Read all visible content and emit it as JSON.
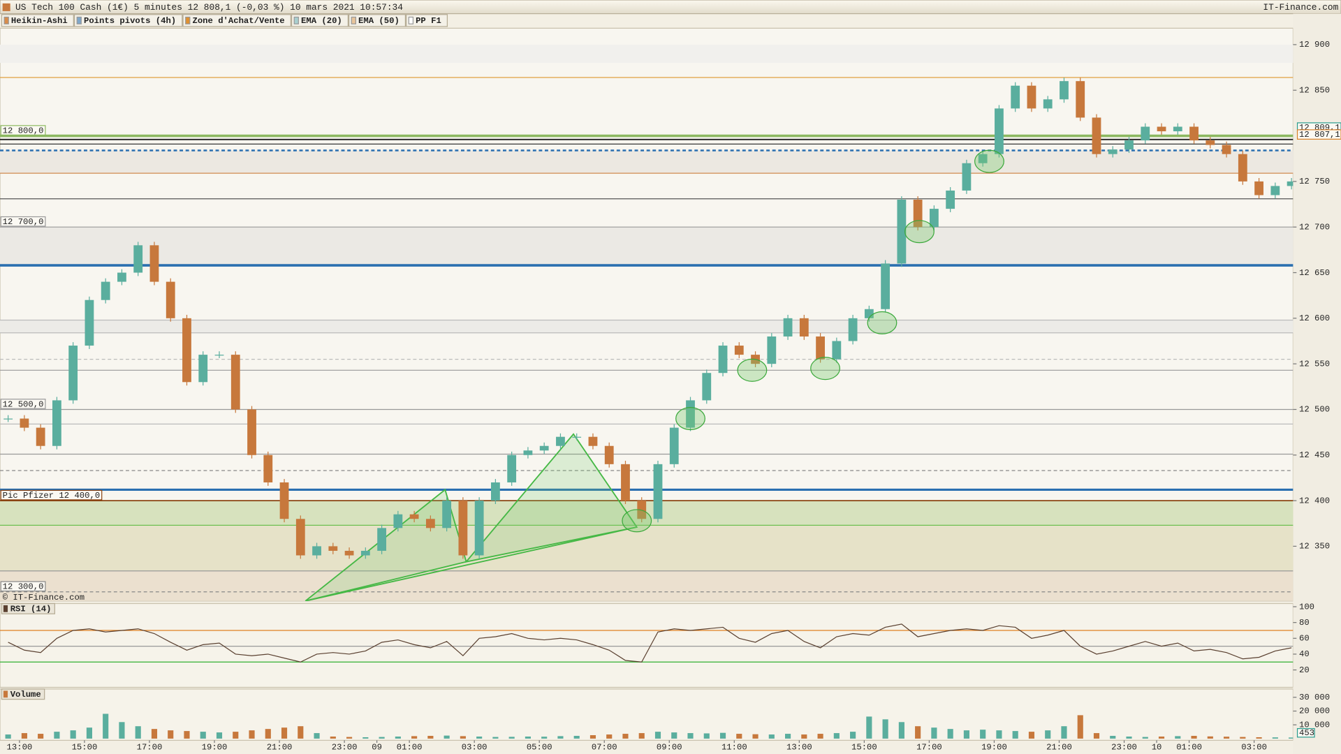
{
  "header": {
    "instrument": "US Tech 100 Cash (1€) 5 minutes 12 808,1 (-0,03 %) 10 mars 2021 10:57:34",
    "site": "IT-Finance.com",
    "copyright": "© IT-Finance.com",
    "indicators": [
      {
        "name": "Heikin-Ashi",
        "color": "#d98c4a"
      },
      {
        "name": "Points pivots (4h)",
        "color": "#7fa7c9"
      },
      {
        "name": "Zone d'Achat/Vente",
        "color": "#e09030"
      },
      {
        "name": "EMA (20)",
        "color": "#a9cfcf"
      },
      {
        "name": "EMA (50)",
        "color": "#e8c49a"
      },
      {
        "name": "PP F1",
        "color": "#ffffff"
      }
    ]
  },
  "chart_data": [
    {
      "type": "candlestick",
      "up_color": "#5aae9e",
      "down_color": "#c7783c",
      "closes": [
        12490,
        12480,
        12460,
        12510,
        12570,
        12620,
        12640,
        12650,
        12680,
        12640,
        12600,
        12530,
        12560,
        12560,
        12500,
        12450,
        12420,
        12380,
        12340,
        12350,
        12345,
        12340,
        12345,
        12370,
        12385,
        12380,
        12370,
        12400,
        12340,
        12400,
        12420,
        12450,
        12455,
        12460,
        12470,
        12470,
        12460,
        12440,
        12400,
        12380,
        12440,
        12480,
        12510,
        12540,
        12570,
        12560,
        12550,
        12580,
        12600,
        12580,
        12555,
        12575,
        12600,
        12610,
        12660,
        12730,
        12700,
        12720,
        12740,
        12770,
        12780,
        12830,
        12855,
        12830,
        12840,
        12860,
        12820,
        12780,
        12785,
        12795,
        12810,
        12805,
        12810,
        12795,
        12790,
        12780,
        12750,
        12735,
        12745,
        12750
      ],
      "xlim": [
        0,
        79.6
      ],
      "xticks": [
        {
          "value": 1.2,
          "label": "13:00"
        },
        {
          "value": 5.2,
          "label": "15:00"
        },
        {
          "value": 9.2,
          "label": "17:00"
        },
        {
          "value": 13.2,
          "label": "19:00"
        },
        {
          "value": 17.2,
          "label": "21:00"
        },
        {
          "value": 21.2,
          "label": "23:00"
        },
        {
          "value": 23.2,
          "label": "09"
        },
        {
          "value": 25.2,
          "label": "01:00"
        },
        {
          "value": 29.2,
          "label": "03:00"
        },
        {
          "value": 33.2,
          "label": "05:00"
        },
        {
          "value": 37.2,
          "label": "07:00"
        },
        {
          "value": 41.2,
          "label": "09:00"
        },
        {
          "value": 45.2,
          "label": "11:00"
        },
        {
          "value": 49.2,
          "label": "13:00"
        },
        {
          "value": 53.2,
          "label": "15:00"
        },
        {
          "value": 57.2,
          "label": "17:00"
        },
        {
          "value": 61.2,
          "label": "19:00"
        },
        {
          "value": 65.2,
          "label": "21:00"
        },
        {
          "value": 69.2,
          "label": "23:00"
        },
        {
          "value": 71.2,
          "label": "10"
        },
        {
          "value": 73.2,
          "label": "01:00"
        },
        {
          "value": 77.2,
          "label": "03:00"
        }
      ],
      "ylim": [
        12290,
        12918
      ],
      "yticks": [
        {
          "value": 12350,
          "label": "12 350"
        },
        {
          "value": 12400,
          "label": "12 400"
        },
        {
          "value": 12450,
          "label": "12 450"
        },
        {
          "value": 12500,
          "label": "12 500"
        },
        {
          "value": 12550,
          "label": "12 550"
        },
        {
          "value": 12600,
          "label": "12 600"
        },
        {
          "value": 12650,
          "label": "12 650"
        },
        {
          "value": 12700,
          "label": "12 700"
        },
        {
          "value": 12750,
          "label": "12 750"
        },
        {
          "value": 12850,
          "label": "12 850"
        },
        {
          "value": 12900,
          "label": "12 900"
        }
      ],
      "zones": [
        {
          "from": 12880,
          "to": 12900,
          "color": "#f1f0ed"
        },
        {
          "from": 12759,
          "to": 12784,
          "color": "#ece8e1"
        },
        {
          "from": 12658,
          "to": 12700,
          "color": "#ebe9e4"
        },
        {
          "from": 12584,
          "to": 12598,
          "color": "#ecebe7"
        },
        {
          "from": 12323,
          "to": 12400,
          "color": "#e6e2c8"
        },
        {
          "from": 12373,
          "to": 12400,
          "color": "#d7e2be"
        },
        {
          "from": 12290,
          "to": 12323,
          "color": "#ebe0cf"
        }
      ],
      "levels": [
        {
          "value": 12864,
          "color": "#e0a040",
          "width": 1
        },
        {
          "value": 12800,
          "color": "#8cb860",
          "width": 3,
          "label": "12 800,0"
        },
        {
          "value": 12796,
          "color": "#222222",
          "width": 1.5
        },
        {
          "value": 12791,
          "color": "#222222",
          "width": 1
        },
        {
          "value": 12784,
          "color": "#2a6fb0",
          "width": 2,
          "dash": true
        },
        {
          "value": 12759,
          "color": "#d08a50",
          "width": 1
        },
        {
          "value": 12731,
          "color": "#555555",
          "width": 1
        },
        {
          "value": 12700,
          "color": "#999999",
          "width": 1,
          "label": "12 700,0"
        },
        {
          "value": 12658,
          "color": "#2a6fb0",
          "width": 3
        },
        {
          "value": 12598,
          "color": "#bbbbbb",
          "width": 1
        },
        {
          "value": 12584,
          "color": "#bbbbbb",
          "width": 1
        },
        {
          "value": 12555,
          "color": "#bbbbbb",
          "width": 1,
          "dash": true
        },
        {
          "value": 12543,
          "color": "#999999",
          "width": 1
        },
        {
          "value": 12500,
          "color": "#999999",
          "width": 1,
          "label": "12 500,0"
        },
        {
          "value": 12484,
          "color": "#bbbbbb",
          "width": 1
        },
        {
          "value": 12451,
          "color": "#999999",
          "width": 1
        },
        {
          "value": 12433,
          "color": "#888888",
          "width": 1,
          "dash": true
        },
        {
          "value": 12412,
          "color": "#2a6fb0",
          "width": 2.5
        },
        {
          "value": 12400,
          "color": "#8b4513",
          "width": 1.5,
          "label": "Pic Pfizer 12 400,0"
        },
        {
          "value": 12373,
          "color": "#6cbf50",
          "width": 1
        },
        {
          "value": 12323,
          "color": "#999999",
          "width": 1
        },
        {
          "value": 12300,
          "color": "#888888",
          "width": 1,
          "dash": true,
          "label": "12 300,0"
        }
      ],
      "price_markers": [
        {
          "value": 12809.1,
          "label": "12 809,1",
          "color": "#2a9d8f"
        },
        {
          "value": 12807.1,
          "label": "12 807,1",
          "color": "#d9822b"
        }
      ],
      "patterns": [
        [
          [
            18.8,
            12290
          ],
          [
            27.4,
            12412
          ],
          [
            28.7,
            12333
          ]
        ],
        [
          [
            28.7,
            12333
          ],
          [
            35.3,
            12473
          ],
          [
            39.2,
            12371
          ]
        ],
        [
          [
            18.8,
            12290
          ],
          [
            39.2,
            12371
          ]
        ]
      ],
      "circles": [
        [
          42.5,
          12490
        ],
        [
          46.3,
          12543
        ],
        [
          50.8,
          12545
        ],
        [
          54.3,
          12595
        ],
        [
          56.6,
          12695
        ],
        [
          60.9,
          12772
        ],
        [
          39.2,
          12378
        ]
      ]
    },
    {
      "type": "line",
      "title": "RSI (14)",
      "color": "#5a4030",
      "values": [
        55,
        45,
        42,
        60,
        70,
        72,
        68,
        70,
        72,
        66,
        55,
        45,
        52,
        54,
        40,
        38,
        40,
        35,
        30,
        40,
        42,
        40,
        44,
        55,
        58,
        52,
        48,
        56,
        38,
        60,
        62,
        66,
        60,
        58,
        60,
        58,
        52,
        45,
        32,
        30,
        68,
        72,
        70,
        72,
        74,
        60,
        55,
        66,
        70,
        56,
        48,
        62,
        66,
        64,
        74,
        78,
        62,
        66,
        70,
        72,
        70,
        76,
        74,
        60,
        64,
        70,
        50,
        40,
        44,
        50,
        56,
        50,
        54,
        44,
        46,
        42,
        34,
        36,
        44,
        48
      ],
      "ylim": [
        -2,
        104
      ],
      "yticks": [
        20,
        40,
        60,
        80,
        100
      ],
      "levels": [
        {
          "value": 70,
          "color": "#e08020",
          "width": 1
        },
        {
          "value": 50,
          "color": "#999999",
          "width": 1
        },
        {
          "value": 30,
          "color": "#30b030",
          "width": 1
        }
      ]
    },
    {
      "type": "bar",
      "title": "Volume",
      "values": [
        3000,
        4000,
        3500,
        5000,
        6000,
        8000,
        18000,
        12000,
        9000,
        7000,
        6000,
        5500,
        5000,
        4500,
        5000,
        6000,
        7000,
        8000,
        9000,
        4000,
        1500,
        1200,
        1000,
        1200,
        1500,
        1800,
        2000,
        2200,
        1800,
        1500,
        1200,
        1300,
        1500,
        1400,
        1800,
        2000,
        2500,
        3000,
        3500,
        4000,
        5000,
        4500,
        4000,
        3800,
        4200,
        3500,
        3200,
        3000,
        3500,
        3000,
        3500,
        4000,
        5000,
        16000,
        14000,
        12000,
        9000,
        8000,
        7000,
        6000,
        6500,
        6000,
        5500,
        5000,
        6000,
        9000,
        17000,
        4000,
        2000,
        1500,
        1200,
        1500,
        1800,
        2000,
        1600,
        1400,
        1200,
        1000,
        900,
        800
      ],
      "ylim": [
        0,
        36000
      ],
      "yticks": [
        {
          "value": 10000,
          "label": "10 000"
        },
        {
          "value": 20000,
          "label": "20 000"
        },
        {
          "value": 30000,
          "label": "30 000"
        }
      ],
      "last_value": 453
    }
  ]
}
